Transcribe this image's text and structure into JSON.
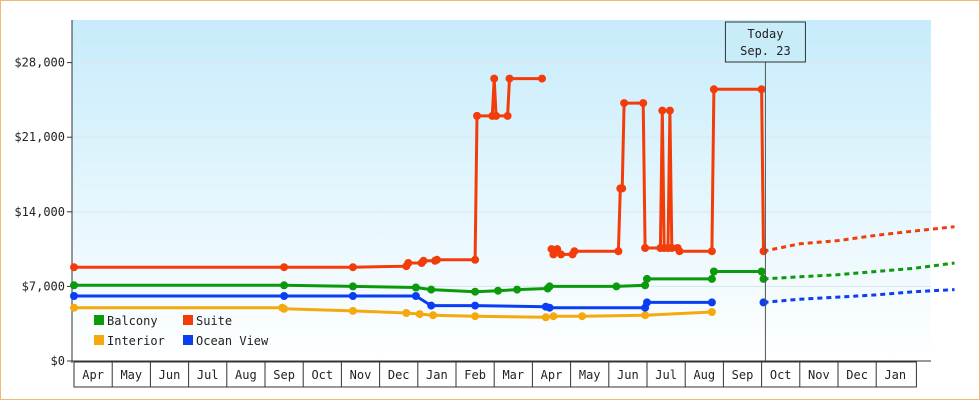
{
  "chart_data": {
    "type": "line",
    "y_ticks": [
      "$0",
      "$7,000",
      "$14,000",
      "$21,000",
      "$28,000"
    ],
    "ylim": [
      0,
      32000
    ],
    "months": [
      "Apr",
      "May",
      "Jun",
      "Jul",
      "Aug",
      "Sep",
      "Oct",
      "Nov",
      "Dec",
      "Jan",
      "Feb",
      "Mar",
      "Apr",
      "May",
      "Jun",
      "Jul",
      "Aug",
      "Sep",
      "Oct",
      "Nov",
      "Dec",
      "Jan"
    ],
    "today_label": "Today",
    "today_date": "Sep. 23",
    "today_index": 18.1,
    "grid": true,
    "legend_position": "bottom-left",
    "colors": {
      "Balcony": "#0b9a0b",
      "Suite": "#f23d0a",
      "Interior": "#f6a90d",
      "Ocean View": "#0a3ef2"
    },
    "series": [
      {
        "name": "Balcony",
        "points": [
          [
            0,
            7100
          ],
          [
            5.5,
            7100
          ],
          [
            7.3,
            7000
          ],
          [
            8.95,
            6900
          ],
          [
            9.35,
            6700
          ],
          [
            10.5,
            6500
          ],
          [
            11.1,
            6600
          ],
          [
            11.6,
            6700
          ],
          [
            12.4,
            6800
          ],
          [
            12.45,
            7000
          ],
          [
            14.2,
            7000
          ],
          [
            14.95,
            7100
          ],
          [
            15.0,
            7700
          ],
          [
            16.7,
            7700
          ],
          [
            16.75,
            8400
          ],
          [
            18.0,
            8400
          ],
          [
            18.05,
            7700
          ]
        ],
        "projection": [
          [
            18.05,
            7700
          ],
          [
            19,
            7900
          ],
          [
            20,
            8100
          ],
          [
            21,
            8400
          ],
          [
            22,
            8700
          ],
          [
            23.05,
            9200
          ]
        ]
      },
      {
        "name": "Suite",
        "points": [
          [
            0,
            8800
          ],
          [
            5.5,
            8800
          ],
          [
            7.3,
            8800
          ],
          [
            8.7,
            8900
          ],
          [
            8.75,
            9200
          ],
          [
            9.1,
            9200
          ],
          [
            9.15,
            9400
          ],
          [
            9.45,
            9400
          ],
          [
            9.5,
            9500
          ],
          [
            10.5,
            9500
          ],
          [
            10.55,
            23000
          ],
          [
            10.95,
            23000
          ],
          [
            11.0,
            26500
          ],
          [
            11.05,
            23000
          ],
          [
            11.35,
            23000
          ],
          [
            11.4,
            26500
          ],
          [
            12.25,
            26500
          ]
        ],
        "points2": [
          [
            12.5,
            10500
          ],
          [
            12.55,
            10000
          ],
          [
            12.65,
            10500
          ],
          [
            12.75,
            10000
          ],
          [
            13.05,
            10000
          ],
          [
            13.1,
            10300
          ],
          [
            14.25,
            10300
          ],
          [
            14.3,
            16200
          ],
          [
            14.35,
            16200
          ],
          [
            14.4,
            24200
          ],
          [
            14.9,
            24200
          ],
          [
            14.95,
            10600
          ],
          [
            15.35,
            10600
          ],
          [
            15.4,
            23500
          ],
          [
            15.45,
            10600
          ],
          [
            15.55,
            10600
          ],
          [
            15.6,
            23500
          ],
          [
            15.65,
            10600
          ],
          [
            15.8,
            10600
          ],
          [
            15.85,
            10300
          ],
          [
            16.7,
            10300
          ],
          [
            16.75,
            25500
          ],
          [
            18.0,
            25500
          ],
          [
            18.05,
            10300
          ]
        ],
        "projection": [
          [
            18.05,
            10300
          ],
          [
            19,
            11000
          ],
          [
            20,
            11300
          ],
          [
            21,
            11800
          ],
          [
            22,
            12200
          ],
          [
            23.05,
            12600
          ]
        ]
      },
      {
        "name": "Interior",
        "points": [
          [
            0,
            5000
          ],
          [
            5.45,
            5000
          ],
          [
            5.5,
            4900
          ],
          [
            7.3,
            4700
          ],
          [
            8.7,
            4500
          ],
          [
            9.05,
            4400
          ],
          [
            9.4,
            4300
          ],
          [
            10.5,
            4200
          ],
          [
            12.35,
            4100
          ],
          [
            12.55,
            4200
          ],
          [
            13.3,
            4200
          ],
          [
            14.95,
            4300
          ],
          [
            16.7,
            4600
          ]
        ]
      },
      {
        "name": "Ocean View",
        "points": [
          [
            0,
            6100
          ],
          [
            5.5,
            6100
          ],
          [
            7.3,
            6100
          ],
          [
            8.95,
            6100
          ],
          [
            9.35,
            5200
          ],
          [
            10.5,
            5200
          ],
          [
            12.35,
            5100
          ],
          [
            12.45,
            5000
          ],
          [
            14.95,
            5000
          ],
          [
            15.0,
            5500
          ],
          [
            16.7,
            5500
          ]
        ],
        "points2": [
          [
            18.05,
            5500
          ]
        ],
        "projection": [
          [
            18.05,
            5500
          ],
          [
            19,
            5800
          ],
          [
            20,
            6000
          ],
          [
            21,
            6200
          ],
          [
            22,
            6500
          ],
          [
            23.05,
            6700
          ]
        ]
      }
    ],
    "legend": [
      {
        "name": "Balcony",
        "color": "#0b9a0b"
      },
      {
        "name": "Suite",
        "color": "#f23d0a"
      },
      {
        "name": "Interior",
        "color": "#f6a90d"
      },
      {
        "name": "Ocean View",
        "color": "#0a3ef2"
      }
    ]
  }
}
